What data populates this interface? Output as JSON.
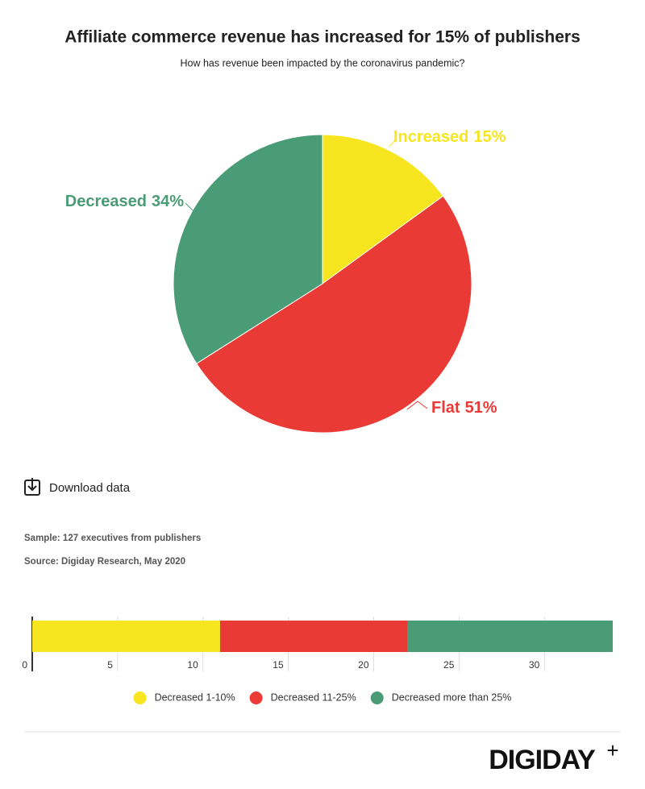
{
  "chart_data": [
    {
      "type": "pie",
      "title": "Affiliate commerce revenue has increased for 15% of publishers",
      "subtitle": "How has revenue been impacted by the coronavirus pandemic?",
      "categories": [
        "Increased",
        "Flat",
        "Decreased"
      ],
      "values": [
        15,
        51,
        34
      ],
      "value_labels": [
        "15%",
        "51%",
        "34%"
      ],
      "colors": [
        "#f6e51f",
        "#e93a35",
        "#4a9c77"
      ]
    },
    {
      "type": "bar",
      "orientation": "horizontal",
      "stacked": true,
      "series": [
        {
          "name": "Decreased 1-10%",
          "color": "#f6e51f",
          "values": [
            11
          ]
        },
        {
          "name": "Decreased 11-25%",
          "color": "#e93a35",
          "values": [
            11
          ]
        },
        {
          "name": "Decreased more than 25%",
          "color": "#4a9c77",
          "values": [
            12
          ]
        }
      ],
      "xlim": [
        0,
        34
      ],
      "xticks": [
        0,
        5,
        10,
        15,
        20,
        25,
        30
      ],
      "grid": true
    }
  ],
  "download": "Download data",
  "notes": [
    "Sample: 127 executives from publishers",
    "Source: Digiday Research, May 2020"
  ],
  "logo": "DIGIDAY",
  "logo_mark": "+"
}
